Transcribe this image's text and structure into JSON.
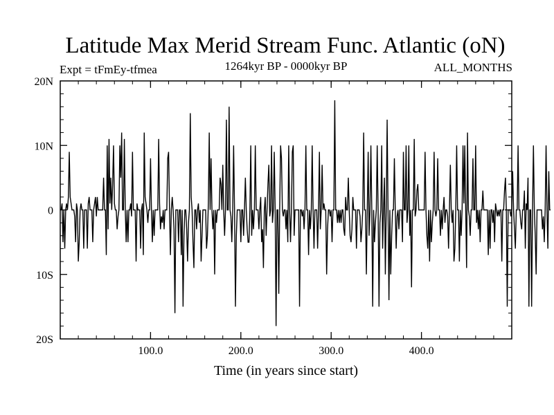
{
  "chart_data": {
    "type": "line",
    "title": "Latitude Max Merid Stream Func. Atlantic (oN)",
    "left_label": "Expt = tFmEy-tfmea",
    "center_label": "1264kyr BP - 0000kyr BP",
    "right_label": "ALL_MONTHS",
    "xlabel": "Time (in years since start)",
    "ylabel": "",
    "xlim": [
      0,
      500
    ],
    "ylim": [
      -20,
      20
    ],
    "xticks": [
      {
        "value": 100,
        "label": "100.0"
      },
      {
        "value": 200,
        "label": "200.0"
      },
      {
        "value": 300,
        "label": "300.0"
      },
      {
        "value": 400,
        "label": "400.0"
      }
    ],
    "yticks": [
      {
        "value": 20,
        "label": "20N"
      },
      {
        "value": 10,
        "label": "10N"
      },
      {
        "value": 0,
        "label": "0"
      },
      {
        "value": -10,
        "label": "10S"
      },
      {
        "value": -20,
        "label": "20S"
      }
    ],
    "series": [
      {
        "name": "latitude_max_streamfunction",
        "x_start": 1,
        "x_step": 1,
        "values": [
          0,
          1,
          -5,
          0,
          -6,
          0,
          1,
          0,
          2,
          9,
          2,
          1,
          0,
          0,
          0,
          -1,
          -5,
          1,
          0,
          -8,
          -5,
          0,
          1,
          0,
          0,
          -6,
          0,
          0,
          0,
          -6,
          1,
          2,
          0,
          0,
          0,
          -5,
          0,
          1,
          2,
          -1,
          2,
          0,
          0,
          0,
          0,
          0,
          0,
          5,
          0,
          0,
          -7,
          10,
          -3,
          11,
          1,
          5,
          0,
          4,
          10,
          1,
          0,
          0,
          -3,
          -1,
          0,
          10,
          5,
          12,
          0,
          0,
          11,
          0,
          -5,
          0,
          -5,
          0,
          0,
          1,
          -1,
          9,
          0,
          0,
          0,
          -8,
          1,
          0,
          0,
          0,
          -6,
          0,
          1,
          -7,
          12,
          2,
          1,
          0,
          -2,
          0,
          0,
          8,
          0,
          -5,
          0,
          -4,
          0,
          0,
          0,
          0,
          11,
          1,
          -3,
          -1,
          -2,
          0,
          -3,
          0,
          0,
          0,
          8,
          9,
          0,
          -7,
          0,
          2,
          0,
          -3,
          -16,
          0,
          0,
          0,
          -5,
          0,
          0,
          -7,
          0,
          -15,
          -4,
          0,
          0,
          -3,
          -8,
          -2,
          0,
          15,
          2,
          0,
          -5,
          -9,
          0,
          0,
          -3,
          0,
          1,
          -2,
          0,
          -8,
          -4,
          0,
          0,
          0,
          0,
          -6,
          -4,
          1,
          12,
          0,
          8,
          0,
          -3,
          0,
          -10,
          0,
          -2,
          0,
          0,
          0,
          5,
          4,
          0,
          7,
          0,
          -4,
          0,
          14,
          0,
          0,
          16,
          0,
          -1,
          -5,
          0,
          10,
          0,
          -15,
          -4,
          0,
          0,
          0,
          0,
          -5,
          0,
          0,
          -4,
          0,
          5,
          0,
          -3,
          -5,
          -5,
          0,
          10,
          -4,
          0,
          -3,
          0,
          10,
          0,
          0,
          0,
          -3,
          0,
          2,
          -5,
          -3,
          -9,
          0,
          2,
          -4,
          0,
          4,
          7,
          -1,
          0,
          10,
          -2,
          0,
          9,
          0,
          -18,
          0,
          0,
          -13,
          0,
          10,
          8,
          0,
          -1,
          0,
          0,
          -3,
          0,
          -5,
          10,
          0,
          -5,
          0,
          9,
          10,
          -4,
          0,
          0,
          0,
          0,
          0,
          -15,
          0,
          0,
          -1,
          0,
          -3,
          0,
          10,
          0,
          0,
          -7,
          0,
          -3,
          0,
          10,
          0,
          -6,
          0,
          0,
          0,
          -6,
          0,
          9,
          -3,
          0,
          7,
          0,
          1,
          0,
          0,
          -10,
          -3,
          0,
          0,
          -1,
          0,
          -5,
          0,
          0,
          17,
          0,
          0,
          -2,
          0,
          -2,
          0,
          -2,
          0,
          0,
          -3,
          -4,
          2,
          0,
          0,
          5,
          0,
          -4,
          -5,
          -3,
          2,
          0,
          0,
          0,
          -6,
          0,
          0,
          0,
          -1,
          -5,
          -3,
          0,
          12,
          0,
          0,
          -10,
          0,
          9,
          -4,
          0,
          10,
          0,
          -15,
          0,
          -5,
          -2,
          0,
          10,
          0,
          -15,
          -2,
          0,
          10,
          -6,
          0,
          5,
          -10,
          0,
          14,
          0,
          -14,
          0,
          -10,
          -4,
          0,
          0,
          8,
          0,
          -6,
          -1,
          0,
          -3,
          0,
          0,
          0,
          -5,
          9,
          0,
          0,
          10,
          -2,
          0,
          10,
          -4,
          0,
          -12,
          0,
          0,
          11,
          -1,
          0,
          3,
          4,
          0,
          0,
          0,
          0,
          0,
          0,
          0,
          9,
          0,
          -4,
          -6,
          0,
          -8,
          0,
          -5,
          -2,
          0,
          9,
          0,
          -1,
          0,
          8,
          0,
          0,
          -4,
          0,
          -3,
          0,
          2,
          -2,
          0,
          0,
          -1,
          -6,
          0,
          7,
          0,
          -2,
          0,
          -8,
          -6,
          0,
          10,
          0,
          0,
          -8,
          0,
          -4,
          0,
          10,
          1,
          10,
          0,
          -9,
          12,
          0,
          -1,
          -4,
          0,
          0,
          8,
          0,
          0,
          10,
          -2,
          0,
          -3,
          0,
          -5,
          0,
          0,
          3,
          0,
          0,
          0,
          0,
          0,
          -7,
          0,
          -6,
          0,
          0,
          -2,
          0,
          -5,
          1,
          0,
          -1,
          0,
          -1,
          0,
          0,
          -8,
          0,
          0,
          3,
          5,
          0,
          -15,
          0,
          0,
          0,
          -1,
          0,
          6,
          0,
          -3,
          -6,
          0,
          0,
          10,
          0,
          0,
          -2,
          -3,
          0,
          0,
          3,
          -6,
          1,
          0,
          5,
          -15,
          0,
          0,
          -15,
          0,
          10,
          0,
          -4,
          -10,
          0,
          0,
          0,
          0,
          0,
          0,
          -3,
          -1,
          -5,
          0,
          10,
          0,
          -6,
          6,
          0,
          0
        ]
      }
    ]
  }
}
